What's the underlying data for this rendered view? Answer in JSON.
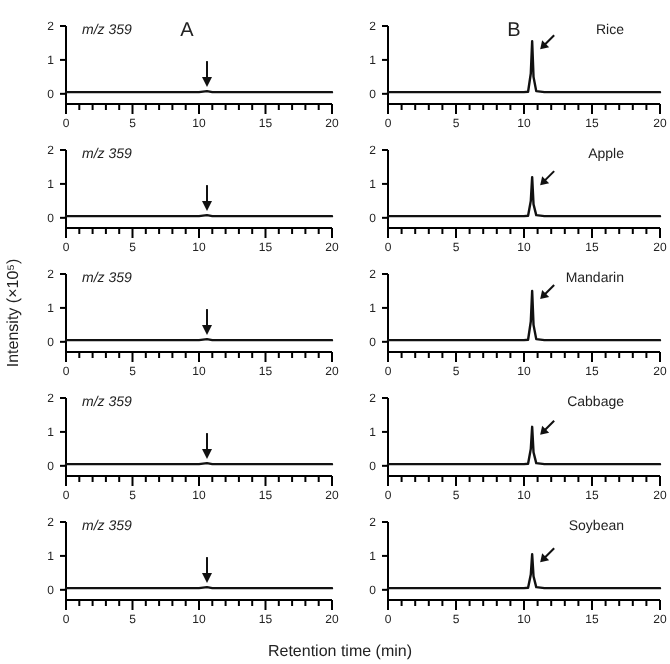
{
  "chart_data": [
    {
      "type": "line",
      "annotations": [
        "m/z 359",
        "A"
      ],
      "x": [
        0,
        2,
        4,
        6,
        8,
        10,
        10.6,
        11,
        13,
        15,
        17,
        20
      ],
      "series": [
        {
          "color": "#111111",
          "values": [
            0.05,
            0.05,
            0.05,
            0.05,
            0.05,
            0.05,
            0.08,
            0.05,
            0.05,
            0.05,
            0.05,
            0.05
          ]
        }
      ],
      "xlim": [
        0,
        20
      ],
      "ylim": [
        -0.3,
        2
      ],
      "xticks": [
        0,
        {
          "value": 1,
          "label": null
        },
        {
          "value": 2,
          "label": null
        },
        {
          "value": 3,
          "label": null
        },
        {
          "value": 4,
          "label": null
        },
        5,
        {
          "value": 6,
          "label": null
        },
        {
          "value": 7,
          "label": null
        },
        {
          "value": 8,
          "label": null
        },
        {
          "value": 9,
          "label": null
        },
        10,
        {
          "value": 11,
          "label": null
        },
        {
          "value": 12,
          "label": null
        },
        {
          "value": 13,
          "label": null
        },
        {
          "value": 14,
          "label": null
        },
        15,
        {
          "value": 16,
          "label": null
        },
        {
          "value": 17,
          "label": null
        },
        {
          "value": 18,
          "label": null
        },
        {
          "value": 19,
          "label": null
        },
        20
      ],
      "yticks": [
        0,
        1,
        2
      ]
    },
    {
      "type": "line",
      "annotations": [
        "B",
        "Rice"
      ],
      "x": [
        0,
        5,
        10,
        10.3,
        10.5,
        10.6,
        10.7,
        10.9,
        11.5,
        15,
        20
      ],
      "series": [
        {
          "color": "#111111",
          "values": [
            0.05,
            0.05,
            0.05,
            0.06,
            0.6,
            1.55,
            0.5,
            0.08,
            0.05,
            0.05,
            0.05
          ]
        }
      ],
      "xlim": [
        0,
        20
      ],
      "ylim": [
        -0.3,
        2
      ],
      "xticks": [
        0,
        {
          "value": 1,
          "label": null
        },
        {
          "value": 2,
          "label": null
        },
        {
          "value": 3,
          "label": null
        },
        {
          "value": 4,
          "label": null
        },
        5,
        {
          "value": 6,
          "label": null
        },
        {
          "value": 7,
          "label": null
        },
        {
          "value": 8,
          "label": null
        },
        {
          "value": 9,
          "label": null
        },
        10,
        {
          "value": 11,
          "label": null
        },
        {
          "value": 12,
          "label": null
        },
        {
          "value": 13,
          "label": null
        },
        {
          "value": 14,
          "label": null
        },
        15,
        {
          "value": 16,
          "label": null
        },
        {
          "value": 17,
          "label": null
        },
        {
          "value": 18,
          "label": null
        },
        {
          "value": 19,
          "label": null
        },
        20
      ],
      "yticks": [
        0,
        1,
        2
      ]
    },
    {
      "type": "line",
      "annotations": [
        "m/z 359"
      ],
      "x": [
        0,
        2,
        4,
        6,
        8,
        10,
        10.6,
        11,
        13,
        15,
        17,
        20
      ],
      "series": [
        {
          "color": "#111111",
          "values": [
            0.05,
            0.05,
            0.05,
            0.05,
            0.05,
            0.05,
            0.08,
            0.05,
            0.05,
            0.05,
            0.05,
            0.05
          ]
        }
      ],
      "xlim": [
        0,
        20
      ],
      "ylim": [
        -0.3,
        2
      ],
      "xticks": [
        0,
        {
          "value": 1,
          "label": null
        },
        {
          "value": 2,
          "label": null
        },
        {
          "value": 3,
          "label": null
        },
        {
          "value": 4,
          "label": null
        },
        5,
        {
          "value": 6,
          "label": null
        },
        {
          "value": 7,
          "label": null
        },
        {
          "value": 8,
          "label": null
        },
        {
          "value": 9,
          "label": null
        },
        10,
        {
          "value": 11,
          "label": null
        },
        {
          "value": 12,
          "label": null
        },
        {
          "value": 13,
          "label": null
        },
        {
          "value": 14,
          "label": null
        },
        15,
        {
          "value": 16,
          "label": null
        },
        {
          "value": 17,
          "label": null
        },
        {
          "value": 18,
          "label": null
        },
        {
          "value": 19,
          "label": null
        },
        20
      ],
      "yticks": [
        0,
        1,
        2
      ]
    },
    {
      "type": "line",
      "annotations": [
        "Apple"
      ],
      "x": [
        0,
        5,
        10,
        10.3,
        10.5,
        10.6,
        10.7,
        10.9,
        11.5,
        15,
        20
      ],
      "series": [
        {
          "color": "#111111",
          "values": [
            0.05,
            0.05,
            0.05,
            0.06,
            0.5,
            1.2,
            0.4,
            0.08,
            0.05,
            0.05,
            0.05
          ]
        }
      ],
      "xlim": [
        0,
        20
      ],
      "ylim": [
        -0.3,
        2
      ],
      "xticks": [
        0,
        {
          "value": 1,
          "label": null
        },
        {
          "value": 2,
          "label": null
        },
        {
          "value": 3,
          "label": null
        },
        {
          "value": 4,
          "label": null
        },
        5,
        {
          "value": 6,
          "label": null
        },
        {
          "value": 7,
          "label": null
        },
        {
          "value": 8,
          "label": null
        },
        {
          "value": 9,
          "label": null
        },
        10,
        {
          "value": 11,
          "label": null
        },
        {
          "value": 12,
          "label": null
        },
        {
          "value": 13,
          "label": null
        },
        {
          "value": 14,
          "label": null
        },
        15,
        {
          "value": 16,
          "label": null
        },
        {
          "value": 17,
          "label": null
        },
        {
          "value": 18,
          "label": null
        },
        {
          "value": 19,
          "label": null
        },
        20
      ],
      "yticks": [
        0,
        1,
        2
      ]
    },
    {
      "type": "line",
      "annotations": [
        "m/z 359"
      ],
      "ylabel": "Intensity (×10⁵)",
      "x": [
        0,
        2,
        4,
        6,
        8,
        10,
        10.6,
        11,
        13,
        15,
        17,
        20
      ],
      "series": [
        {
          "color": "#111111",
          "values": [
            0.05,
            0.05,
            0.05,
            0.05,
            0.05,
            0.05,
            0.08,
            0.05,
            0.05,
            0.05,
            0.05,
            0.05
          ]
        }
      ],
      "xlim": [
        0,
        20
      ],
      "ylim": [
        -0.3,
        2
      ],
      "xticks": [
        0,
        {
          "value": 1,
          "label": null
        },
        {
          "value": 2,
          "label": null
        },
        {
          "value": 3,
          "label": null
        },
        {
          "value": 4,
          "label": null
        },
        5,
        {
          "value": 6,
          "label": null
        },
        {
          "value": 7,
          "label": null
        },
        {
          "value": 8,
          "label": null
        },
        {
          "value": 9,
          "label": null
        },
        10,
        {
          "value": 11,
          "label": null
        },
        {
          "value": 12,
          "label": null
        },
        {
          "value": 13,
          "label": null
        },
        {
          "value": 14,
          "label": null
        },
        15,
        {
          "value": 16,
          "label": null
        },
        {
          "value": 17,
          "label": null
        },
        {
          "value": 18,
          "label": null
        },
        {
          "value": 19,
          "label": null
        },
        20
      ],
      "yticks": [
        0,
        1,
        2
      ]
    },
    {
      "type": "line",
      "annotations": [
        "Mandarin"
      ],
      "x": [
        0,
        5,
        10,
        10.3,
        10.5,
        10.6,
        10.7,
        10.9,
        11.5,
        15,
        20
      ],
      "series": [
        {
          "color": "#111111",
          "values": [
            0.05,
            0.05,
            0.05,
            0.06,
            0.6,
            1.5,
            0.5,
            0.08,
            0.05,
            0.05,
            0.05
          ]
        }
      ],
      "xlim": [
        0,
        20
      ],
      "ylim": [
        -0.3,
        2
      ],
      "xticks": [
        0,
        {
          "value": 1,
          "label": null
        },
        {
          "value": 2,
          "label": null
        },
        {
          "value": 3,
          "label": null
        },
        {
          "value": 4,
          "label": null
        },
        5,
        {
          "value": 6,
          "label": null
        },
        {
          "value": 7,
          "label": null
        },
        {
          "value": 8,
          "label": null
        },
        {
          "value": 9,
          "label": null
        },
        10,
        {
          "value": 11,
          "label": null
        },
        {
          "value": 12,
          "label": null
        },
        {
          "value": 13,
          "label": null
        },
        {
          "value": 14,
          "label": null
        },
        15,
        {
          "value": 16,
          "label": null
        },
        {
          "value": 17,
          "label": null
        },
        {
          "value": 18,
          "label": null
        },
        {
          "value": 19,
          "label": null
        },
        20
      ],
      "yticks": [
        0,
        1,
        2
      ]
    },
    {
      "type": "line",
      "annotations": [
        "m/z 359"
      ],
      "x": [
        0,
        2,
        4,
        6,
        8,
        10,
        10.6,
        11,
        13,
        15,
        17,
        20
      ],
      "series": [
        {
          "color": "#111111",
          "values": [
            0.05,
            0.05,
            0.05,
            0.05,
            0.05,
            0.05,
            0.08,
            0.05,
            0.05,
            0.05,
            0.05,
            0.05
          ]
        }
      ],
      "xlim": [
        0,
        20
      ],
      "ylim": [
        -0.3,
        2
      ],
      "xticks": [
        0,
        {
          "value": 1,
          "label": null
        },
        {
          "value": 2,
          "label": null
        },
        {
          "value": 3,
          "label": null
        },
        {
          "value": 4,
          "label": null
        },
        5,
        {
          "value": 6,
          "label": null
        },
        {
          "value": 7,
          "label": null
        },
        {
          "value": 8,
          "label": null
        },
        {
          "value": 9,
          "label": null
        },
        10,
        {
          "value": 11,
          "label": null
        },
        {
          "value": 12,
          "label": null
        },
        {
          "value": 13,
          "label": null
        },
        {
          "value": 14,
          "label": null
        },
        15,
        {
          "value": 16,
          "label": null
        },
        {
          "value": 17,
          "label": null
        },
        {
          "value": 18,
          "label": null
        },
        {
          "value": 19,
          "label": null
        },
        20
      ],
      "yticks": [
        0,
        1,
        2
      ]
    },
    {
      "type": "line",
      "annotations": [
        "Cabbage"
      ],
      "x": [
        0,
        5,
        10,
        10.3,
        10.5,
        10.6,
        10.7,
        10.9,
        11.5,
        15,
        20
      ],
      "series": [
        {
          "color": "#111111",
          "values": [
            0.05,
            0.05,
            0.05,
            0.06,
            0.5,
            1.15,
            0.4,
            0.08,
            0.05,
            0.05,
            0.05
          ]
        }
      ],
      "xlim": [
        0,
        20
      ],
      "ylim": [
        -0.3,
        2
      ],
      "xticks": [
        0,
        {
          "value": 1,
          "label": null
        },
        {
          "value": 2,
          "label": null
        },
        {
          "value": 3,
          "label": null
        },
        {
          "value": 4,
          "label": null
        },
        5,
        {
          "value": 6,
          "label": null
        },
        {
          "value": 7,
          "label": null
        },
        {
          "value": 8,
          "label": null
        },
        {
          "value": 9,
          "label": null
        },
        10,
        {
          "value": 11,
          "label": null
        },
        {
          "value": 12,
          "label": null
        },
        {
          "value": 13,
          "label": null
        },
        {
          "value": 14,
          "label": null
        },
        15,
        {
          "value": 16,
          "label": null
        },
        {
          "value": 17,
          "label": null
        },
        {
          "value": 18,
          "label": null
        },
        {
          "value": 19,
          "label": null
        },
        20
      ],
      "yticks": [
        0,
        1,
        2
      ]
    },
    {
      "type": "line",
      "annotations": [
        "m/z 359"
      ],
      "xlabel": "Retention time (min)",
      "x": [
        0,
        2,
        4,
        6,
        8,
        10,
        10.6,
        11,
        13,
        15,
        17,
        20
      ],
      "series": [
        {
          "color": "#111111",
          "values": [
            0.05,
            0.05,
            0.05,
            0.05,
            0.05,
            0.05,
            0.08,
            0.05,
            0.05,
            0.05,
            0.05,
            0.05
          ]
        }
      ],
      "xlim": [
        0,
        20
      ],
      "ylim": [
        -0.3,
        2
      ],
      "xticks": [
        0,
        {
          "value": 1,
          "label": null
        },
        {
          "value": 2,
          "label": null
        },
        {
          "value": 3,
          "label": null
        },
        {
          "value": 4,
          "label": null
        },
        5,
        {
          "value": 6,
          "label": null
        },
        {
          "value": 7,
          "label": null
        },
        {
          "value": 8,
          "label": null
        },
        {
          "value": 9,
          "label": null
        },
        10,
        {
          "value": 11,
          "label": null
        },
        {
          "value": 12,
          "label": null
        },
        {
          "value": 13,
          "label": null
        },
        {
          "value": 14,
          "label": null
        },
        15,
        {
          "value": 16,
          "label": null
        },
        {
          "value": 17,
          "label": null
        },
        {
          "value": 18,
          "label": null
        },
        {
          "value": 19,
          "label": null
        },
        20
      ],
      "yticks": [
        0,
        1,
        2
      ]
    },
    {
      "type": "line",
      "annotations": [
        "Soybean"
      ],
      "x": [
        0,
        5,
        10,
        10.3,
        10.5,
        10.6,
        10.7,
        10.9,
        11.5,
        15,
        20
      ],
      "series": [
        {
          "color": "#111111",
          "values": [
            0.05,
            0.05,
            0.05,
            0.06,
            0.45,
            1.05,
            0.4,
            0.08,
            0.05,
            0.05,
            0.05
          ]
        }
      ],
      "xlim": [
        0,
        20
      ],
      "ylim": [
        -0.3,
        2
      ],
      "xticks": [
        0,
        {
          "value": 1,
          "label": null
        },
        {
          "value": 2,
          "label": null
        },
        {
          "value": 3,
          "label": null
        },
        {
          "value": 4,
          "label": null
        },
        5,
        {
          "value": 6,
          "label": null
        },
        {
          "value": 7,
          "label": null
        },
        {
          "value": 8,
          "label": null
        },
        {
          "value": 9,
          "label": null
        },
        10,
        {
          "value": 11,
          "label": null
        },
        {
          "value": 12,
          "label": null
        },
        {
          "value": 13,
          "label": null
        },
        {
          "value": 14,
          "label": null
        },
        15,
        {
          "value": 16,
          "label": null
        },
        {
          "value": 17,
          "label": null
        },
        {
          "value": 18,
          "label": null
        },
        {
          "value": 19,
          "label": null
        },
        20
      ],
      "yticks": [
        0,
        1,
        2
      ]
    }
  ]
}
